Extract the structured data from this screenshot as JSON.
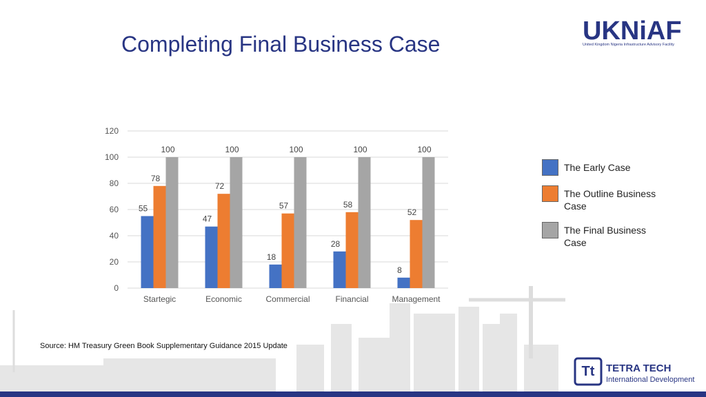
{
  "header": {
    "title": "Completing Final Business Case",
    "logo": {
      "name": "UKNiAF",
      "tagline": "United Kingdom Nigeria Infrastructure Advisory Facility"
    }
  },
  "chart_data": {
    "type": "bar",
    "categories": [
      "Startegic",
      "Economic",
      "Commercial",
      "Financial",
      "Management"
    ],
    "series": [
      {
        "name": "The Early Case",
        "color": "#4472c4",
        "values": [
          55,
          47,
          18,
          28,
          8
        ]
      },
      {
        "name": "The Outline Business Case",
        "color": "#ed7d31",
        "values": [
          78,
          72,
          57,
          58,
          52
        ]
      },
      {
        "name": "The Final Business Case",
        "color": "#a5a5a5",
        "values": [
          100,
          100,
          100,
          100,
          100
        ]
      }
    ],
    "ylim": [
      0,
      120
    ],
    "yticks": [
      0,
      20,
      40,
      60,
      80,
      100,
      120
    ],
    "grid": true,
    "legend": "right"
  },
  "footer": {
    "source": "Source: HM Treasury Green Book Supplementary Guidance 2015 Update",
    "partner": {
      "name": "TETRA TECH",
      "division": "International Development"
    }
  }
}
